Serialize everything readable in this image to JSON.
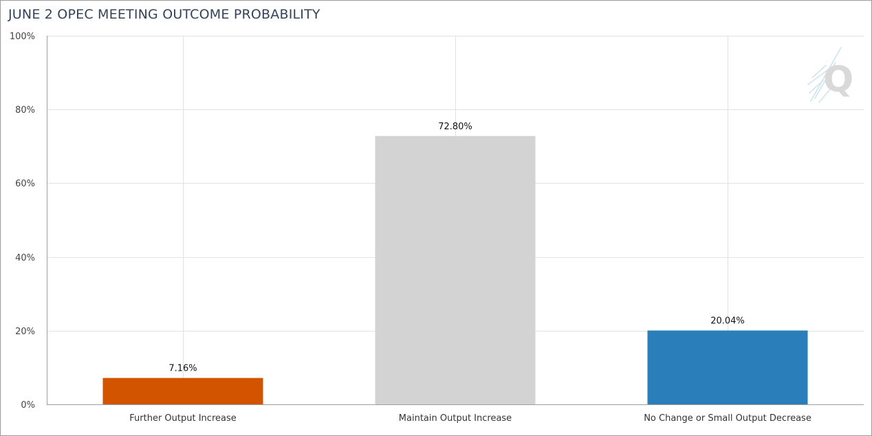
{
  "chart_data": {
    "type": "bar",
    "title": "JUNE 2 OPEC MEETING OUTCOME PROBABILITY",
    "categories": [
      "Further Output Increase",
      "Maintain Output Increase",
      "No Change or Small Output Decrease"
    ],
    "values": [
      7.16,
      72.8,
      20.04
    ],
    "data_labels": [
      "7.16%",
      "72.80%",
      "20.04%"
    ],
    "colors": [
      "#d35400",
      "#d3d3d3",
      "#2a7fba"
    ],
    "ylim": [
      0,
      100
    ],
    "yticks": [
      0,
      20,
      40,
      60,
      80,
      100
    ],
    "ytick_labels": [
      "0%",
      "20%",
      "40%",
      "60%",
      "80%",
      "100%"
    ],
    "xlabel": "",
    "ylabel": "",
    "grid": true,
    "legend": "none"
  },
  "watermark": {
    "icon": "q-logo-icon",
    "text": "Q"
  }
}
